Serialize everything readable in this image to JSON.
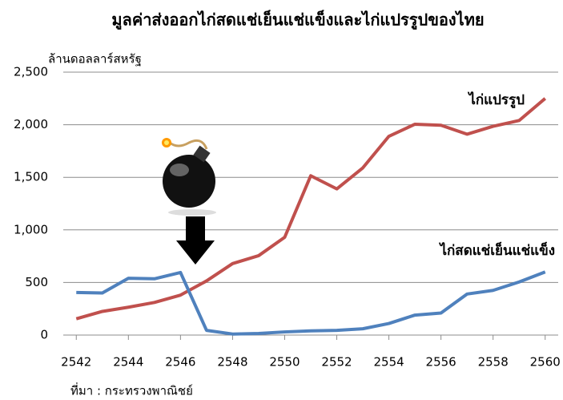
{
  "chart_data": {
    "type": "line",
    "title": "มูลค่าส่งออกไก่สดแช่เย็นแช่แข็งและไก่แปรรูปของไทย",
    "y_label": "ล้านดอลลาร์สหรัฐ",
    "source": "ที่มา : กระทรวงพาณิชย์",
    "x": [
      2542,
      2543,
      2544,
      2545,
      2546,
      2547,
      2548,
      2549,
      2550,
      2551,
      2552,
      2553,
      2554,
      2555,
      2556,
      2557,
      2558,
      2559,
      2560
    ],
    "series": [
      {
        "name": "ไก่แปรรูป",
        "color": "#c0504d",
        "values": [
          155,
          225,
          265,
          310,
          380,
          515,
          680,
          755,
          930,
          1515,
          1390,
          1590,
          1890,
          2005,
          1995,
          1910,
          1985,
          2040,
          2250
        ]
      },
      {
        "name": "ไก่สดแช่เย็นแช่แข็ง",
        "color": "#4f81bd",
        "values": [
          405,
          400,
          540,
          535,
          595,
          45,
          10,
          15,
          30,
          40,
          45,
          60,
          110,
          190,
          210,
          390,
          425,
          505,
          600
        ]
      }
    ],
    "xlim": [
      2541.5,
      2560.5
    ],
    "xticks": [
      2542,
      2544,
      2546,
      2548,
      2550,
      2552,
      2554,
      2556,
      2558,
      2560
    ],
    "ylim": [
      0,
      2500
    ],
    "yticks": [
      0,
      500,
      {
        "value": 1000,
        "label": "1,000"
      },
      {
        "value": 1500,
        "label": "1,500"
      },
      {
        "value": 2000,
        "label": "2,000"
      },
      {
        "value": 2500,
        "label": "2,500"
      }
    ],
    "grid": true
  }
}
